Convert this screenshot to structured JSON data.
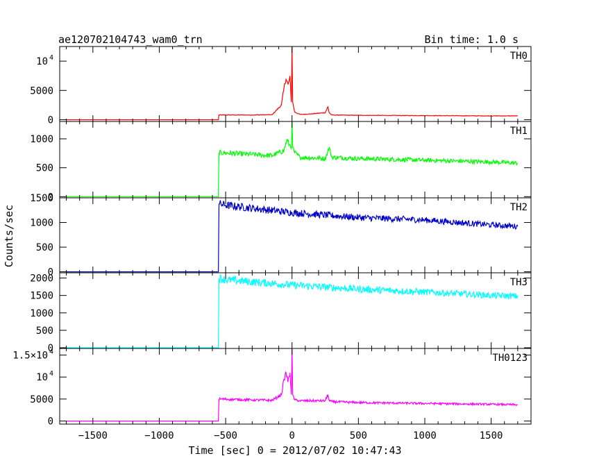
{
  "header": {
    "title": "ae120702104743_wam0_trn",
    "bin_time": "Bin time: 1.0 s"
  },
  "chart_data": {
    "type": "line",
    "title": "ae120702104743_wam0_trn",
    "ylabel": "Counts/sec",
    "xlabel": "Time [sec] 0 = 2012/07/02 10:47:43",
    "xlim": [
      -1750,
      1800
    ],
    "x_ticks": [
      {
        "v": -1500,
        "label": "−1500"
      },
      {
        "v": -1000,
        "label": "−1000"
      },
      {
        "v": -500,
        "label": "−500"
      },
      {
        "v": 0,
        "label": "0"
      },
      {
        "v": 500,
        "label": "500"
      },
      {
        "v": 1000,
        "label": "1000"
      },
      {
        "v": 1500,
        "label": "1500"
      }
    ],
    "panels": [
      {
        "name": "TH0",
        "color": "#ff0000",
        "ylim": [
          -300,
          12500
        ],
        "y_ticks": [
          {
            "v": 0,
            "label": "0"
          },
          {
            "v": 5000,
            "label": "5000"
          },
          {
            "v": 10000,
            "label": "10",
            "exp": "4"
          }
        ],
        "x": [
          -1700,
          -555,
          -550,
          -300,
          -150,
          -80,
          -60,
          -45,
          -30,
          -15,
          -5,
          0,
          5,
          20,
          60,
          150,
          250,
          270,
          280,
          300,
          500,
          1000,
          1500,
          1700
        ],
        "y": [
          0,
          0,
          800,
          800,
          850,
          2500,
          5500,
          7000,
          6000,
          7200,
          3000,
          12500,
          3000,
          1300,
          900,
          1000,
          1200,
          2200,
          1200,
          800,
          750,
          700,
          650,
          650
        ]
      },
      {
        "name": "TH1",
        "color": "#00ff00",
        "ylim": [
          -20,
          1300
        ],
        "y_ticks": [
          {
            "v": 0,
            "label": "0"
          },
          {
            "v": 500,
            "label": "500"
          },
          {
            "v": 1000,
            "label": "1000"
          }
        ],
        "x": [
          -1700,
          -555,
          -550,
          -300,
          -150,
          -60,
          -40,
          -20,
          -5,
          0,
          5,
          20,
          60,
          250,
          280,
          300,
          500,
          1000,
          1500,
          1700
        ],
        "y": [
          0,
          0,
          760,
          730,
          710,
          800,
          980,
          900,
          850,
          1300,
          850,
          760,
          680,
          660,
          850,
          680,
          660,
          630,
          600,
          580
        ]
      },
      {
        "name": "TH2",
        "color": "#0000cc",
        "ylim": [
          -20,
          1500
        ],
        "y_ticks": [
          {
            "v": 0,
            "label": "0"
          },
          {
            "v": 500,
            "label": "500"
          },
          {
            "v": 1000,
            "label": "1000"
          },
          {
            "v": 1500,
            "label": "1500"
          }
        ],
        "x": [
          -1700,
          -555,
          -550,
          -500,
          0,
          500,
          1000,
          1500,
          1700
        ],
        "y": [
          0,
          0,
          1380,
          1350,
          1200,
          1100,
          1050,
          950,
          920
        ]
      },
      {
        "name": "TH3",
        "color": "#00ffff",
        "ylim": [
          -20,
          2150
        ],
        "y_ticks": [
          {
            "v": 0,
            "label": "0"
          },
          {
            "v": 500,
            "label": "500"
          },
          {
            "v": 1000,
            "label": "1000"
          },
          {
            "v": 1500,
            "label": "1500"
          },
          {
            "v": 2000,
            "label": "2000"
          }
        ],
        "x": [
          -1700,
          -555,
          -550,
          -500,
          0,
          500,
          1000,
          1500,
          1700
        ],
        "y": [
          0,
          0,
          2000,
          1950,
          1800,
          1680,
          1600,
          1500,
          1480
        ]
      },
      {
        "name": "TH0123",
        "color": "#ff00ff",
        "ylim": [
          -700,
          16500
        ],
        "y_ticks": [
          {
            "v": 0,
            "label": "0"
          },
          {
            "v": 5000,
            "label": "5000"
          },
          {
            "v": 10000,
            "label": "10",
            "exp": "4"
          },
          {
            "v": 15000,
            "label": "1.5×10",
            "exp": "4"
          }
        ],
        "x": [
          -1700,
          -555,
          -550,
          -300,
          -150,
          -80,
          -60,
          -45,
          -30,
          -15,
          -5,
          0,
          5,
          20,
          60,
          150,
          250,
          270,
          280,
          300,
          500,
          1000,
          1500,
          1700
        ],
        "y": [
          0,
          0,
          5000,
          4800,
          4700,
          6000,
          9500,
          11000,
          9000,
          11000,
          6000,
          16500,
          6000,
          4800,
          4600,
          4600,
          4600,
          6000,
          4600,
          4400,
          4200,
          4000,
          3800,
          3700
        ]
      }
    ]
  }
}
